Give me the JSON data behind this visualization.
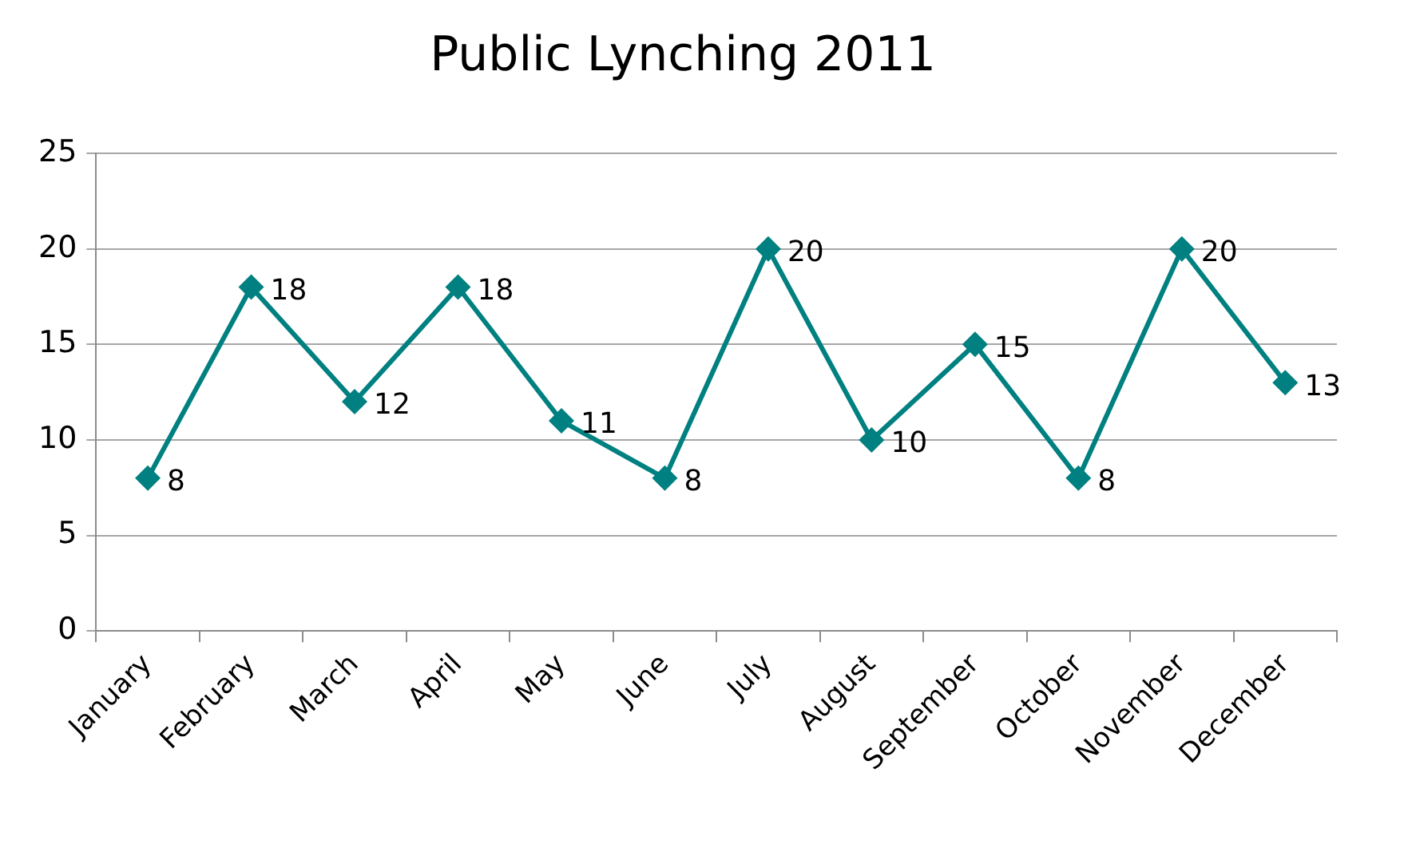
{
  "chart_data": {
    "type": "line",
    "title": "Public Lynching 2011",
    "categories": [
      "January",
      "February",
      "March",
      "April",
      "May",
      "June",
      "July",
      "August",
      "September",
      "October",
      "November",
      "December"
    ],
    "series": [
      {
        "color": "#008080",
        "values": [
          8,
          18,
          12,
          18,
          11,
          8,
          20,
          10,
          15,
          8,
          20,
          13
        ]
      }
    ],
    "ylim": [
      0,
      25
    ],
    "yticks": [
      0,
      5,
      10,
      15,
      20,
      25
    ],
    "grid": "y",
    "marker": "diamond",
    "line_style": "solid",
    "data_labels": true
  }
}
